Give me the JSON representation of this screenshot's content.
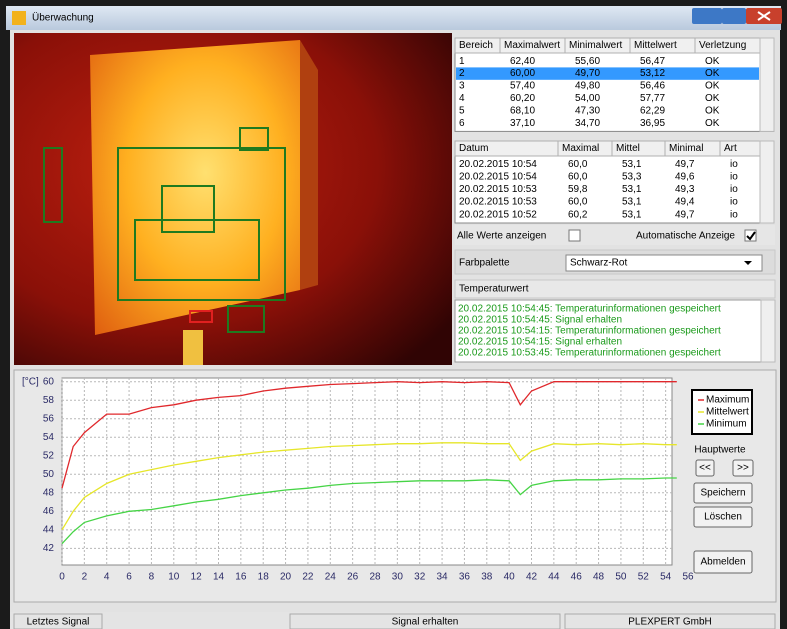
{
  "window": {
    "title": "Überwachung"
  },
  "areas_table": {
    "headers": [
      "Bereich",
      "Maximalwert",
      "Minimalwert",
      "Mittelwert",
      "Verletzung"
    ],
    "rows": [
      [
        "1",
        "62,40",
        "55,60",
        "56,47",
        "OK"
      ],
      [
        "2",
        "60,00",
        "49,70",
        "53,12",
        "OK"
      ],
      [
        "3",
        "57,40",
        "49,80",
        "56,46",
        "OK"
      ],
      [
        "4",
        "60,20",
        "54,00",
        "57,77",
        "OK"
      ],
      [
        "5",
        "68,10",
        "47,30",
        "62,29",
        "OK"
      ],
      [
        "6",
        "37,10",
        "34,70",
        "36,95",
        "OK"
      ]
    ]
  },
  "history_table": {
    "headers": [
      "Datum",
      "Maximal",
      "Mittel",
      "Minimal",
      "Art"
    ],
    "rows": [
      [
        "20.02.2015 10:54",
        "60,0",
        "53,1",
        "49,7",
        "io"
      ],
      [
        "20.02.2015 10:54",
        "60,0",
        "53,3",
        "49,6",
        "io"
      ],
      [
        "20.02.2015 10:53",
        "59,8",
        "53,1",
        "49,3",
        "io"
      ],
      [
        "20.02.2015 10:53",
        "60,0",
        "53,1",
        "49,4",
        "io"
      ],
      [
        "20.02.2015 10:52",
        "60,2",
        "53,1",
        "49,7",
        "io"
      ]
    ]
  },
  "options": {
    "show_all": "Alle Werte anzeigen",
    "auto_display": "Automatische Anzeige",
    "palette_label": "Farbpalette",
    "palette_value": "Schwarz-Rot"
  },
  "log": {
    "title": "Temperaturwert",
    "lines": [
      "20.02.2015 10:54:45: Temperaturinformationen gespeichert",
      "20.02.2015 10:54:45: Signal erhalten",
      "20.02.2015 10:54:15: Temperaturinformationen gespeichert",
      "20.02.2015 10:54:15: Signal erhalten",
      "20.02.2015 10:53:45: Temperaturinformationen gespeichert"
    ]
  },
  "chart_data": {
    "type": "line",
    "y_label": "[°C]",
    "x": [
      0,
      1,
      2,
      4,
      6,
      8,
      10,
      12,
      14,
      16,
      18,
      20,
      22,
      24,
      26,
      28,
      30,
      32,
      34,
      36,
      38,
      40,
      41,
      42,
      44,
      46,
      48,
      50,
      52,
      54,
      55
    ],
    "series": [
      {
        "name": "Maximum",
        "color": "#e0282c",
        "values": [
          48.5,
          53,
          54.5,
          56.5,
          56.5,
          57.2,
          57.5,
          58,
          58.3,
          58.5,
          59,
          59.3,
          59.5,
          59.7,
          59.8,
          59.9,
          60,
          59.9,
          60,
          59.9,
          60,
          59.9,
          57.5,
          59,
          60,
          60,
          60,
          60,
          60,
          60,
          60
        ]
      },
      {
        "name": "Mittelwert",
        "color": "#e6e62a",
        "values": [
          44,
          46,
          47.5,
          49,
          50,
          50.5,
          51,
          51.4,
          51.8,
          52.1,
          52.4,
          52.6,
          52.8,
          53,
          53.1,
          53.2,
          53.3,
          53.3,
          53.4,
          53.4,
          53.3,
          53.3,
          51.5,
          52.5,
          53.3,
          53.2,
          53.3,
          53.2,
          53.3,
          53.2,
          53.2
        ]
      },
      {
        "name": "Minimum",
        "color": "#46d446",
        "values": [
          42.5,
          43.8,
          44.8,
          45.5,
          46,
          46.2,
          46.6,
          47,
          47.3,
          47.7,
          48,
          48.3,
          48.5,
          48.8,
          49,
          49.1,
          49.2,
          49.3,
          49.3,
          49.3,
          49.4,
          49.3,
          47.8,
          48.8,
          49.3,
          49.4,
          49.4,
          49.5,
          49.5,
          49.6,
          49.6
        ]
      }
    ],
    "xlim": [
      0,
      56
    ],
    "ylim": [
      40.2,
      60.4
    ],
    "xticks": [
      0,
      2,
      4,
      6,
      8,
      10,
      12,
      14,
      16,
      18,
      20,
      22,
      24,
      26,
      28,
      30,
      32,
      34,
      36,
      38,
      40,
      42,
      44,
      46,
      48,
      50,
      52,
      54,
      56
    ],
    "yticks": [
      42,
      44,
      46,
      48,
      50,
      52,
      54,
      56,
      58,
      60
    ],
    "grid": true,
    "legend": "right"
  },
  "controls": {
    "label": "Hauptwerte",
    "prev": "<<",
    "next": ">>",
    "save": "Speichern",
    "delete": "Löschen",
    "logout": "Abmelden"
  },
  "status_bar": [
    "Letztes Signal",
    "Signal erhalten",
    "PLEXPERT GmbH"
  ]
}
